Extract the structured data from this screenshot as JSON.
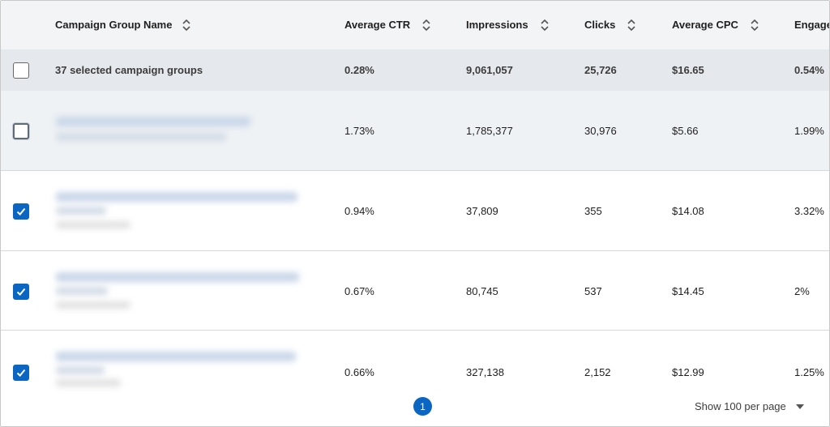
{
  "columns": [
    {
      "label": "Campaign Group Name"
    },
    {
      "label": "Average CTR"
    },
    {
      "label": "Impressions"
    },
    {
      "label": "Clicks"
    },
    {
      "label": "Average CPC"
    },
    {
      "label": "Engage"
    }
  ],
  "summary": {
    "label": "37 selected campaign groups",
    "ctr": "0.28%",
    "impressions": "9,061,057",
    "clicks": "25,726",
    "cpc": "$16.65",
    "engagement": "0.54%",
    "checked": false
  },
  "rows": [
    {
      "checked": false,
      "ctr": "1.73%",
      "impressions": "1,785,377",
      "clicks": "30,976",
      "cpc": "$5.66",
      "engagement": "1.99%"
    },
    {
      "checked": true,
      "ctr": "0.94%",
      "impressions": "37,809",
      "clicks": "355",
      "cpc": "$14.08",
      "engagement": "3.32%"
    },
    {
      "checked": true,
      "ctr": "0.67%",
      "impressions": "80,745",
      "clicks": "537",
      "cpc": "$14.45",
      "engagement": "2%"
    },
    {
      "checked": true,
      "ctr": "0.66%",
      "impressions": "327,138",
      "clicks": "2,152",
      "cpc": "$12.99",
      "engagement": "1.25%"
    }
  ],
  "pagination": {
    "current_page": "1",
    "per_page_label": "Show 100 per page"
  },
  "colors": {
    "accent": "#0a66c2",
    "header_bg": "#f3f4f6",
    "summary_bg": "#e5e8ec"
  }
}
